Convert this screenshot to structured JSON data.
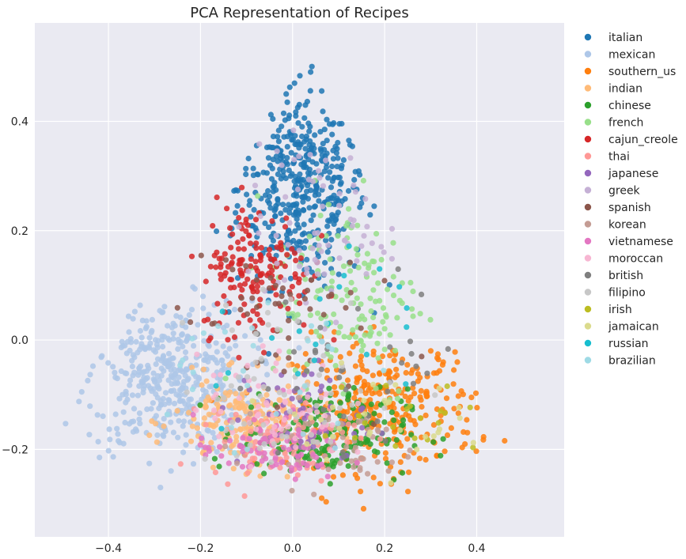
{
  "chart_data": {
    "type": "scatter",
    "title": "PCA Representation of Recipes",
    "xlabel": "",
    "ylabel": "",
    "xlim": [
      -0.56,
      0.59
    ],
    "ylim": [
      -0.36,
      0.58
    ],
    "x_ticks": [
      -0.4,
      -0.2,
      0.0,
      0.2,
      0.4
    ],
    "x_tick_labels": [
      "−0.4",
      "−0.2",
      "0.0",
      "0.2",
      "0.4"
    ],
    "y_ticks": [
      -0.2,
      0.0,
      0.2,
      0.4
    ],
    "y_tick_labels": [
      "−0.2",
      "0.0",
      "0.2",
      "0.4"
    ],
    "grid": true,
    "legend_position": "outside-right",
    "series": [
      {
        "name": "italian",
        "color": "#1f77b4",
        "center": [
          0.02,
          0.28
        ],
        "spread": [
          0.07,
          0.09
        ],
        "count": 420
      },
      {
        "name": "mexican",
        "color": "#aec7e8",
        "center": [
          -0.27,
          -0.07
        ],
        "spread": [
          0.09,
          0.07
        ],
        "count": 420
      },
      {
        "name": "southern_us",
        "color": "#ff7f0e",
        "center": [
          0.2,
          -0.12
        ],
        "spread": [
          0.1,
          0.06
        ],
        "count": 300
      },
      {
        "name": "indian",
        "color": "#ffbb78",
        "center": [
          -0.1,
          -0.15
        ],
        "spread": [
          0.08,
          0.04
        ],
        "count": 200
      },
      {
        "name": "chinese",
        "color": "#2ca02c",
        "center": [
          0.07,
          -0.17
        ],
        "spread": [
          0.09,
          0.04
        ],
        "count": 200
      },
      {
        "name": "french",
        "color": "#98df8a",
        "center": [
          0.12,
          0.08
        ],
        "spread": [
          0.08,
          0.1
        ],
        "count": 150
      },
      {
        "name": "cajun_creole",
        "color": "#d62728",
        "center": [
          -0.08,
          0.13
        ],
        "spread": [
          0.06,
          0.06
        ],
        "count": 160
      },
      {
        "name": "thai",
        "color": "#ff9896",
        "center": [
          -0.02,
          -0.18
        ],
        "spread": [
          0.08,
          0.035
        ],
        "count": 110
      },
      {
        "name": "japanese",
        "color": "#9467bd",
        "center": [
          0.02,
          -0.14
        ],
        "spread": [
          0.07,
          0.05
        ],
        "count": 60
      },
      {
        "name": "greek",
        "color": "#c5b0d5",
        "center": [
          0.05,
          0.2
        ],
        "spread": [
          0.08,
          0.08
        ],
        "count": 70
      },
      {
        "name": "spanish",
        "color": "#8c564b",
        "center": [
          -0.05,
          0.05
        ],
        "spread": [
          0.1,
          0.08
        ],
        "count": 50
      },
      {
        "name": "korean",
        "color": "#c49c94",
        "center": [
          0.08,
          -0.19
        ],
        "spread": [
          0.1,
          0.04
        ],
        "count": 60
      },
      {
        "name": "vietnamese",
        "color": "#e377c2",
        "center": [
          -0.05,
          -0.2
        ],
        "spread": [
          0.08,
          0.03
        ],
        "count": 80
      },
      {
        "name": "moroccan",
        "color": "#f7b6d2",
        "center": [
          -0.05,
          -0.12
        ],
        "spread": [
          0.08,
          0.05
        ],
        "count": 60
      },
      {
        "name": "british",
        "color": "#7f7f7f",
        "center": [
          0.15,
          -0.05
        ],
        "spread": [
          0.12,
          0.08
        ],
        "count": 40
      },
      {
        "name": "filipino",
        "color": "#c7c7c7",
        "center": [
          0.0,
          -0.08
        ],
        "spread": [
          0.12,
          0.08
        ],
        "count": 60
      },
      {
        "name": "irish",
        "color": "#bcbd22",
        "center": [
          0.25,
          -0.15
        ],
        "spread": [
          0.1,
          0.05
        ],
        "count": 20
      },
      {
        "name": "jamaican",
        "color": "#dbdb8d",
        "center": [
          0.15,
          -0.14
        ],
        "spread": [
          0.1,
          0.04
        ],
        "count": 30
      },
      {
        "name": "russian",
        "color": "#17becf",
        "center": [
          0.05,
          0.05
        ],
        "spread": [
          0.15,
          0.1
        ],
        "count": 20
      },
      {
        "name": "brazilian",
        "color": "#9edae5",
        "center": [
          -0.1,
          -0.05
        ],
        "spread": [
          0.12,
          0.08
        ],
        "count": 30
      }
    ]
  }
}
